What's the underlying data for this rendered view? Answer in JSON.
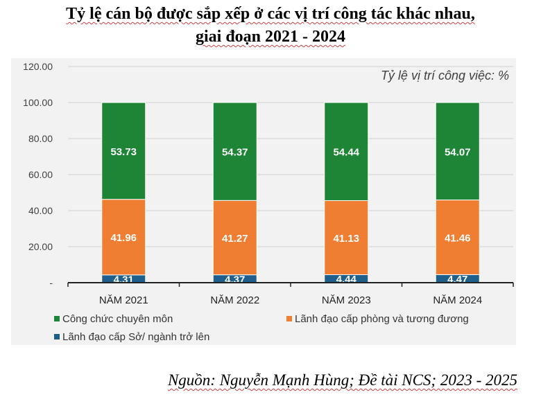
{
  "title_line1": "Tỷ lệ cán bộ được sắp xếp ở các vị trí công tác khác nhau,",
  "title_line2": "giai đoạn 2021 - 2024",
  "source": "Nguồn: Nguyễn Mạnh Hùng; Đề tài NCS; 2023 - 2025",
  "chart_data": {
    "type": "bar",
    "stacked": true,
    "title": "Tỷ lệ cán bộ được sắp xếp ở các vị trí công tác khác nhau, giai đoạn 2021 - 2024",
    "annotation": "Tỷ lệ vị trí công việc: %",
    "categories": [
      "NĂM 2021",
      "NĂM 2022",
      "NĂM 2023",
      "NĂM 2024"
    ],
    "series": [
      {
        "name": "Lãnh đạo cấp Sở/ ngành trở lên",
        "values": [
          4.31,
          4.37,
          4.44,
          4.47
        ],
        "labels": [
          "4.31",
          "4.37",
          "4.44",
          "4.47"
        ],
        "color": "#1f5f8b"
      },
      {
        "name": "Lãnh đạo cấp phòng và tương đương",
        "values": [
          41.96,
          41.27,
          41.13,
          41.46
        ],
        "labels": [
          "41.96",
          "41.27",
          "41.13",
          "41.46"
        ],
        "color": "#ef7d32"
      },
      {
        "name": "Công chức chuyên môn",
        "values": [
          53.73,
          54.37,
          54.44,
          54.07
        ],
        "labels": [
          "53.73",
          "54.37",
          "54.44",
          "54.07"
        ],
        "color": "#1e8436"
      }
    ],
    "legend_order": [
      2,
      1,
      0
    ],
    "ylim": [
      0,
      120
    ],
    "yticks": [
      0,
      20,
      40,
      60,
      80,
      100,
      120
    ],
    "ytick_labels": [
      "-",
      "20.00",
      "40.00",
      "60.00",
      "80.00",
      "100.00",
      "120.00"
    ],
    "xlabel": "",
    "ylabel": "",
    "grid": true,
    "legend_position": "bottom"
  }
}
